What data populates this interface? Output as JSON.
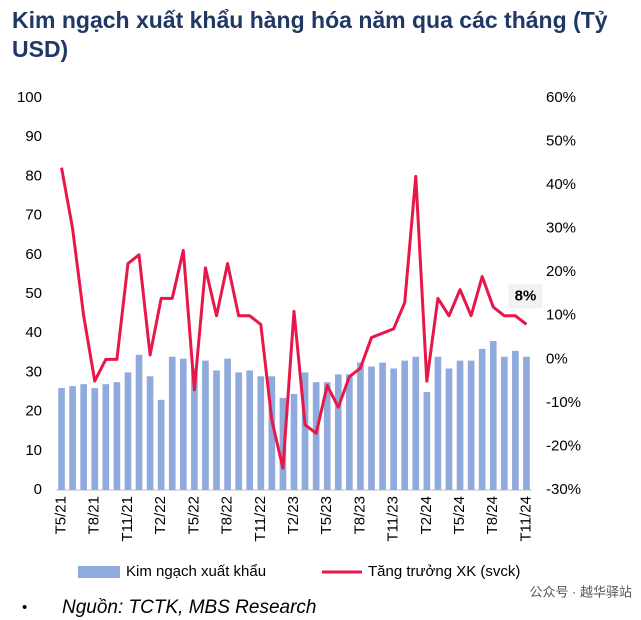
{
  "chart_data": {
    "type": "bar_line",
    "title": "Kim ngạch xuất khẩu hàng hóa năm qua các tháng (Tỷ USD)",
    "categories": [
      "T5/21",
      null,
      null,
      "T8/21",
      null,
      null,
      "T11/21",
      null,
      null,
      "T2/22",
      null,
      null,
      "T5/22",
      null,
      null,
      "T8/22",
      null,
      null,
      "T11/22",
      null,
      null,
      "T2/23",
      null,
      null,
      "T5/23",
      null,
      null,
      "T8/23",
      null,
      null,
      "T11/23",
      null,
      null,
      "T2/24",
      null,
      null,
      "T5/24",
      null,
      null,
      "T8/24",
      null,
      null,
      "T11/24"
    ],
    "series": [
      {
        "name": "Kim ngạch xuất khẩu",
        "type": "bar",
        "color": "#8faadc",
        "values": [
          26,
          26.5,
          27,
          26,
          27,
          27.5,
          30,
          34.5,
          29,
          23,
          34,
          33.5,
          31,
          33,
          30.5,
          33.5,
          30,
          30.5,
          29,
          29,
          23.5,
          24.5,
          30,
          27.5,
          27.5,
          29.5,
          29.5,
          32.5,
          31.5,
          32.5,
          31,
          33,
          34,
          25,
          34,
          31,
          33,
          33,
          36,
          38,
          34,
          35.5,
          34
        ]
      },
      {
        "name": "Tăng trưởng XK (svck)",
        "type": "line",
        "axis": "y2",
        "color": "#e8174a",
        "values": [
          44,
          30,
          10,
          -5,
          0,
          0,
          22,
          24,
          1,
          14,
          14,
          25,
          -7,
          21,
          10,
          22,
          10,
          10,
          8,
          -14,
          -25,
          11,
          -15,
          -17,
          -6,
          -11,
          -4,
          -2,
          5,
          6,
          7,
          13,
          42,
          -5,
          14,
          10,
          16,
          10,
          19,
          12,
          10,
          10,
          8
        ],
        "value_labels": [
          null,
          null,
          null,
          null,
          null,
          null,
          null,
          null,
          null,
          null,
          null,
          null,
          null,
          null,
          null,
          null,
          null,
          null,
          null,
          null,
          null,
          null,
          null,
          null,
          null,
          null,
          null,
          null,
          null,
          null,
          null,
          null,
          null,
          null,
          null,
          null,
          null,
          null,
          null,
          null,
          null,
          null,
          "8%"
        ]
      }
    ],
    "ylim": [
      0,
      100
    ],
    "yticks": [
      0,
      10,
      20,
      30,
      40,
      50,
      60,
      70,
      80,
      90,
      100
    ],
    "y2lim": [
      -30,
      60
    ],
    "y2ticks": [
      {
        "value": -30,
        "label": "-30%"
      },
      {
        "value": -20,
        "label": "-20%"
      },
      {
        "value": -10,
        "label": "-10%"
      },
      {
        "value": 0,
        "label": "0%"
      },
      {
        "value": 10,
        "label": "10%"
      },
      {
        "value": 20,
        "label": "20%"
      },
      {
        "value": 30,
        "label": "30%"
      },
      {
        "value": 40,
        "label": "40%"
      },
      {
        "value": 50,
        "label": "50%"
      },
      {
        "value": 60,
        "label": "60%"
      }
    ],
    "grid": false,
    "source": "Nguồn: TCTK, MBS Research",
    "bullet": "•",
    "watermark": "公众号 · 越华驿站"
  }
}
